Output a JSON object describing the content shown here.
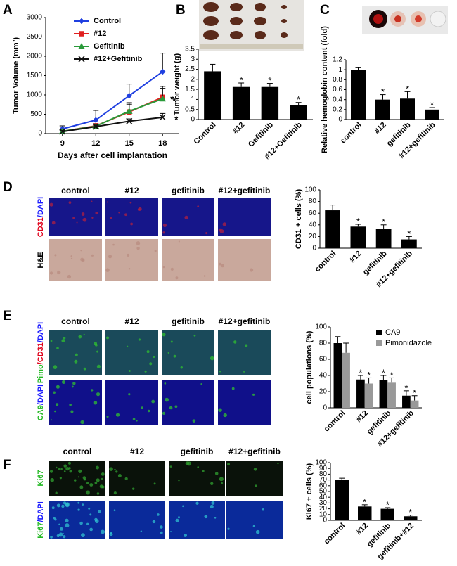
{
  "panel_labels": [
    "A",
    "B",
    "C",
    "D",
    "E",
    "F"
  ],
  "micrographs": [
    {
      "columns": [
        "control",
        "#12",
        "gefitinib",
        "#12+gefitinib"
      ],
      "rows": [
        {
          "parts": [
            "CD31",
            "/DAPI"
          ],
          "colors": [
            "#e0001a",
            "#1a1aff"
          ]
        },
        {
          "parts": [
            "H&E"
          ],
          "colors": [
            "#000000"
          ]
        }
      ]
    },
    {
      "columns": [
        "control",
        "#12",
        "gefitinib",
        "#12+gefitinib"
      ],
      "rows": [
        {
          "parts": [
            "Pimo",
            "/CD31",
            "/DAPI"
          ],
          "colors": [
            "#22b822",
            "#e0001a",
            "#1a1aff"
          ]
        },
        {
          "parts": [
            "CA9",
            "/DAPI"
          ],
          "colors": [
            "#22b822",
            "#1a1aff"
          ]
        }
      ]
    },
    {
      "columns": [
        "control",
        "#12",
        "gefitinib",
        "#12+gefitinib"
      ],
      "rows": [
        {
          "parts": [
            "Ki67"
          ],
          "colors": [
            "#22b822"
          ]
        },
        {
          "parts": [
            "Ki67",
            "/DAPI"
          ],
          "colors": [
            "#22b822",
            "#1a1aff"
          ]
        }
      ]
    }
  ],
  "chart_data": [
    {
      "type": "line",
      "x_label": "Days  after cell implantation",
      "y_label": "Tumor Volume (mm³)",
      "x": [
        9,
        12,
        15,
        18
      ],
      "xlim": [
        7.5,
        19.5
      ],
      "xticks": [
        9,
        12,
        15,
        18
      ],
      "ylim": [
        0,
        3000
      ],
      "yticks": [
        0,
        500,
        1000,
        1500,
        2000,
        2500,
        3000
      ],
      "series": [
        {
          "name": "Control",
          "color": "#1f3fe0",
          "marker": "diamond",
          "values": [
            120,
            350,
            980,
            1600
          ],
          "errors": [
            80,
            250,
            300,
            480
          ]
        },
        {
          "name": "#12",
          "color": "#e02020",
          "marker": "square",
          "values": [
            60,
            200,
            560,
            940
          ],
          "errors": [
            40,
            60,
            200,
            280
          ],
          "significance": "*"
        },
        {
          "name": "Gefitinib",
          "color": "#2a9a3a",
          "marker": "triangle",
          "values": [
            60,
            190,
            580,
            900
          ],
          "errors": [
            40,
            50,
            220,
            270
          ],
          "significance": "*"
        },
        {
          "name": "#12+Gefitinib",
          "color": "#111111",
          "marker": "x",
          "values": [
            50,
            180,
            320,
            420
          ],
          "errors": [
            30,
            40,
            60,
            100
          ],
          "significance": "*"
        }
      ]
    },
    {
      "type": "bar",
      "y_label": "Tumor weight (g)",
      "categories": [
        "Control",
        "#12",
        "Gefitinib",
        "#12+Gefitinib"
      ],
      "values": [
        2.4,
        1.62,
        1.62,
        0.73
      ],
      "errors": [
        0.35,
        0.2,
        0.18,
        0.12
      ],
      "significance": [
        null,
        "*",
        "*",
        "*"
      ],
      "color": "#000000",
      "ylim": [
        0,
        3.5
      ],
      "yticks": [
        0,
        0.5,
        1,
        1.5,
        2,
        2.5,
        3,
        3.5
      ]
    },
    {
      "type": "bar",
      "y_label": "Relative hemoglobin content (fold)",
      "categories": [
        "control",
        "#12",
        "gefitinib",
        "#12+gefitinib"
      ],
      "values": [
        1.0,
        0.4,
        0.42,
        0.2
      ],
      "errors": [
        0.04,
        0.1,
        0.14,
        0.04
      ],
      "significance": [
        null,
        "*",
        "*",
        "*"
      ],
      "color": "#000000",
      "ylim": [
        0,
        1.2
      ],
      "yticks": [
        0,
        0.2,
        0.4,
        0.6,
        0.8,
        1,
        1.2
      ]
    },
    {
      "type": "bar",
      "y_label": "CD31 + cells (%)",
      "categories": [
        "control",
        "#12",
        "gefitinib",
        "#12+gefitinib"
      ],
      "values": [
        65,
        37,
        33,
        15
      ],
      "errors": [
        9,
        4,
        7,
        5
      ],
      "significance": [
        null,
        "*",
        "*",
        "*"
      ],
      "color": "#000000",
      "ylim": [
        0,
        100
      ],
      "yticks": [
        0,
        20,
        40,
        60,
        80,
        100
      ]
    },
    {
      "type": "bar",
      "y_label": "cell populations (%)",
      "categories": [
        "control",
        "#12",
        "gefitinib",
        "#12+gefitinib"
      ],
      "series": [
        {
          "name": "CA9",
          "color": "#000000",
          "values": [
            80,
            35,
            34,
            15
          ],
          "errors": [
            8,
            5,
            6,
            6
          ],
          "significance": [
            null,
            "*",
            "*",
            "*"
          ]
        },
        {
          "name": "Pimonidazole",
          "color": "#999999",
          "values": [
            68,
            30,
            31,
            9
          ],
          "errors": [
            12,
            7,
            6,
            6
          ],
          "significance": [
            null,
            "*",
            "*",
            "*"
          ]
        }
      ],
      "ylim": [
        0,
        100
      ],
      "yticks": [
        0,
        20,
        40,
        60,
        80,
        100
      ]
    },
    {
      "type": "bar",
      "y_label": "Ki67 + cells (%)",
      "categories": [
        "control",
        "#12",
        "gefitinib",
        "gefitinib+#12"
      ],
      "values": [
        70,
        24,
        20,
        7
      ],
      "errors": [
        3,
        3,
        2,
        2
      ],
      "significance": [
        null,
        "*",
        "*",
        "*"
      ],
      "color": "#000000",
      "ylim": [
        0,
        100
      ],
      "yticks": [
        0,
        10,
        20,
        30,
        40,
        50,
        60,
        70,
        80,
        90,
        100
      ]
    }
  ]
}
